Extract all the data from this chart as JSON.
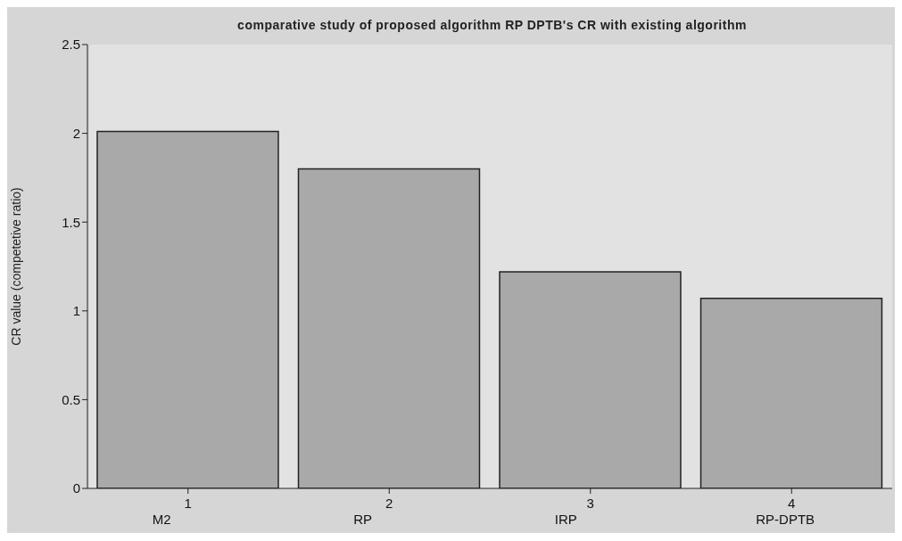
{
  "chart_data": {
    "type": "bar",
    "title": "comparative study of proposed algorithm RP DPTB's CR with existing algorithm",
    "ylabel": "CR value (competetive ratio)",
    "categories": [
      "1",
      "2",
      "3",
      "4"
    ],
    "values": [
      2.01,
      1.8,
      1.22,
      1.07
    ],
    "color": "#a9a9a9",
    "ylim": [
      0,
      2.5
    ],
    "yticks": [
      0,
      0.5,
      1,
      1.5,
      2,
      2.5
    ],
    "grid": false,
    "annotations": [
      "M2",
      "RP",
      "IRP",
      "RP-DPTB"
    ]
  }
}
